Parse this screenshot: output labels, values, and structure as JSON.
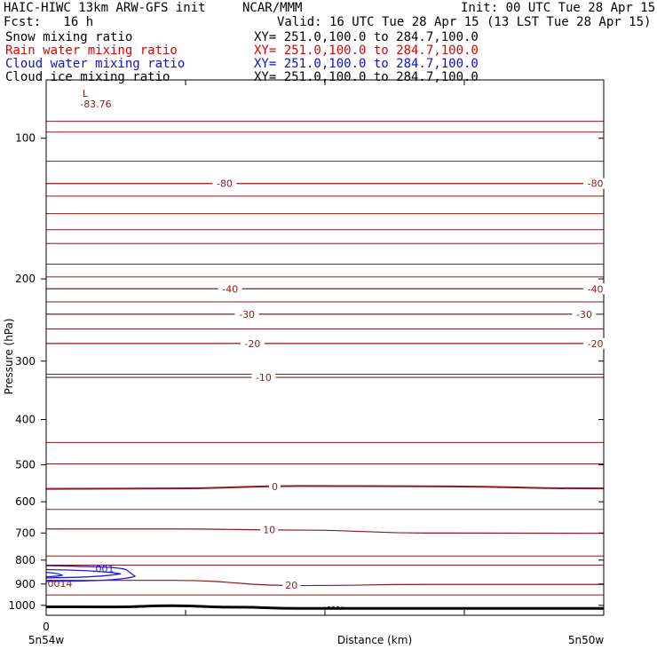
{
  "header": {
    "title": "HAIC-HIWC 13km ARW-GFS init",
    "org": "NCAR/MMM",
    "init": "Init: 00 UTC Tue 28 Apr 15",
    "fcst": "Fcst:   16 h",
    "valid": "Valid: 16 UTC Tue 28 Apr 15 (13 LST Tue 28 Apr 15)"
  },
  "fields": [
    {
      "name": "Snow mixing ratio",
      "xy": "XY= 251.0,100.0 to 284.7,100.0",
      "color": "#000000"
    },
    {
      "name": "Rain water mixing ratio",
      "xy": "XY= 251.0,100.0 to 284.7,100.0",
      "color": "#ff0000"
    },
    {
      "name": "Cloud water mixing ratio",
      "xy": "XY= 251.0,100.0 to 284.7,100.0",
      "color": "#0000ff"
    },
    {
      "name": "Cloud ice mixing ratio",
      "xy": "XY= 251.0,100.0 to 284.7,100.0",
      "color": "#000000"
    }
  ],
  "colors": {
    "temperature": "#8b1a1a",
    "cloud_water": "#1e1ee6",
    "axis": "#000000"
  },
  "chart_data": {
    "type": "line",
    "xlabel": "Distance (km)",
    "ylabel": "Pressure (hPa)",
    "y_scale": "log",
    "y_inverted": true,
    "ylim": [
      1050,
      75
    ],
    "y_ticks": [
      100,
      200,
      300,
      400,
      500,
      600,
      700,
      800,
      900,
      1000
    ],
    "x_ticks": [
      0
    ],
    "x_tick_labels": [
      "0"
    ],
    "x_end_labels": {
      "left": "5n54w",
      "right": "5n50w"
    },
    "xlim": [
      0,
      4.4
    ],
    "temperature_contours": [
      {
        "label": "-80",
        "x": [
          0,
          4.4
        ],
        "p": [
          125,
          125
        ]
      },
      {
        "label": "-40",
        "x": [
          0,
          4.4
        ],
        "p": [
          210,
          210
        ]
      },
      {
        "label": "-30",
        "x": [
          0,
          4.4
        ],
        "p": [
          238,
          238
        ]
      },
      {
        "label": "-20",
        "x": [
          0,
          4.4
        ],
        "p": [
          275,
          275
        ]
      },
      {
        "label": "-10",
        "x": [
          0,
          4.4
        ],
        "p": [
          325,
          325
        ]
      },
      {
        "label": "0",
        "x": [
          0,
          1.0,
          2.0,
          3.0,
          4.4
        ],
        "p": [
          563,
          562,
          555,
          556,
          562
        ]
      },
      {
        "label": "10",
        "x": [
          0,
          1.0,
          2.0,
          3.0,
          4.4
        ],
        "p": [
          686,
          686,
          690,
          700,
          701
        ]
      },
      {
        "label": "20",
        "x": [
          0,
          1.0,
          2.0,
          3.0,
          4.4
        ],
        "p": [
          884,
          884,
          907,
          902,
          902
        ]
      }
    ],
    "extra_isotherm_levels_p": [
      92,
      97,
      112,
      133,
      145,
      157,
      168,
      186,
      198,
      224,
      256,
      320,
      448,
      498,
      623,
      784,
      820,
      950
    ],
    "low_marker": {
      "label": "L",
      "value": "-83.76",
      "x": 0.35,
      "p": 96
    },
    "cloud_water_labels": [
      ".001",
      ".0014"
    ],
    "surface_pressure": {
      "x": [
        0,
        0.5,
        1.0,
        1.5,
        2.0,
        4.4
      ],
      "p": [
        1007,
        1008,
        1002,
        1009,
        1015,
        1015
      ]
    }
  }
}
